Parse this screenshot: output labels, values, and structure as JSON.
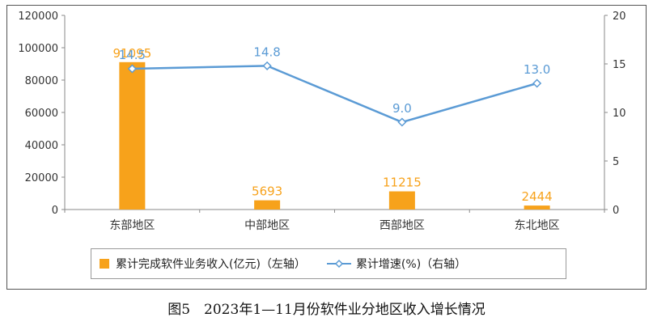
{
  "chart_data": {
    "type": "bar",
    "categories": [
      "东部地区",
      "中部地区",
      "西部地区",
      "东北地区"
    ],
    "series": [
      {
        "name": "累计完成软件业务收入(亿元)（左轴）",
        "type": "bar",
        "axis": "left",
        "values": [
          91095,
          5693,
          11215,
          2444
        ]
      },
      {
        "name": "累计增速(%)（右轴）",
        "type": "line",
        "axis": "right",
        "values": [
          14.5,
          14.8,
          9.0,
          13.0
        ]
      }
    ],
    "y_left": {
      "range": [
        0,
        120000
      ],
      "ticks": [
        0,
        20000,
        40000,
        60000,
        80000,
        100000,
        120000
      ]
    },
    "y_right": {
      "range": [
        0,
        20
      ],
      "ticks": [
        0,
        5,
        10,
        15,
        20
      ]
    },
    "bar_labels": [
      "91095",
      "5693",
      "11215",
      "2444"
    ],
    "line_labels": [
      "14.5",
      "14.8",
      "9.0",
      "13.0"
    ],
    "legend_position": "bottom",
    "grid": false
  },
  "colors": {
    "bar": "#f7a21b",
    "line": "#5b9bd5",
    "axis": "#8a8a8a"
  },
  "caption": "图5　2023年1—11月份软件业分地区收入增长情况"
}
